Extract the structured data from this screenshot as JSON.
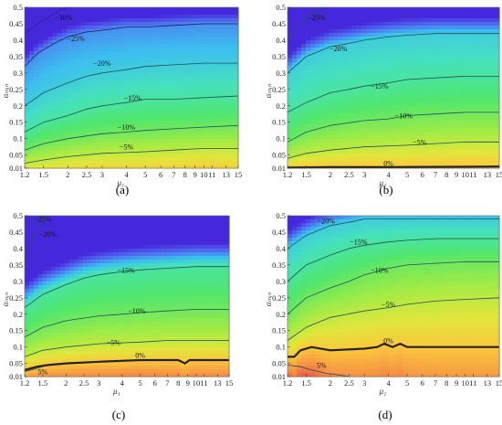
{
  "chart_data": [
    {
      "type": "contour",
      "panel_label": "(a)",
      "xlabel": "μ₁",
      "ylabel": "αₘᵢₙ",
      "xticks": [
        "1.2",
        "1.5",
        "2",
        "2.5",
        "3",
        "4",
        "5",
        "6",
        "7",
        "8",
        "9",
        "10",
        "11",
        "13",
        "15"
      ],
      "yticks": [
        "0.01",
        "0.05",
        "0.1",
        "0.15",
        "0.2",
        "0.25",
        "0.3",
        "0.35",
        "0.4",
        "0.45",
        "0.5"
      ],
      "xlim": [
        1.2,
        15
      ],
      "ylim": [
        0.01,
        0.5
      ],
      "contours": [
        {
          "label": "-30%",
          "level": -30,
          "x": [
            1.2,
            1.4,
            1.6,
            1.8,
            2.0
          ],
          "y": [
            0.42,
            0.45,
            0.47,
            0.49,
            0.5
          ]
        },
        {
          "label": "-25%",
          "level": -25,
          "x": [
            1.2,
            1.4,
            1.7,
            2.0,
            2.5,
            3,
            4,
            5,
            7,
            10,
            15
          ],
          "y": [
            0.32,
            0.36,
            0.39,
            0.41,
            0.425,
            0.43,
            0.44,
            0.44,
            0.445,
            0.45,
            0.45
          ]
        },
        {
          "label": "-20%",
          "level": -20,
          "x": [
            1.2,
            1.5,
            2.0,
            2.5,
            3,
            4,
            5,
            7,
            10,
            15
          ],
          "y": [
            0.2,
            0.24,
            0.27,
            0.29,
            0.3,
            0.31,
            0.32,
            0.325,
            0.33,
            0.33
          ]
        },
        {
          "label": "-15%",
          "level": -15,
          "x": [
            1.2,
            1.5,
            2.0,
            2.5,
            3,
            4,
            5,
            7,
            10,
            15
          ],
          "y": [
            0.12,
            0.15,
            0.17,
            0.19,
            0.2,
            0.21,
            0.22,
            0.22,
            0.225,
            0.23
          ]
        },
        {
          "label": "-10%",
          "level": -10,
          "x": [
            1.2,
            1.5,
            2.0,
            3,
            4,
            5,
            7,
            10,
            15
          ],
          "y": [
            0.065,
            0.085,
            0.1,
            0.115,
            0.12,
            0.125,
            0.13,
            0.135,
            0.14
          ]
        },
        {
          "label": "-5%",
          "level": -5,
          "x": [
            1.2,
            1.5,
            2.0,
            3,
            5,
            7,
            10,
            15
          ],
          "y": [
            0.025,
            0.035,
            0.045,
            0.055,
            0.06,
            0.065,
            0.07,
            0.07
          ]
        }
      ]
    },
    {
      "type": "contour",
      "panel_label": "(b)",
      "xlabel": "μ₁",
      "ylabel": "αₘᵢₙ",
      "xticks": [
        "1.2",
        "1.5",
        "2",
        "2.5",
        "3",
        "4",
        "5",
        "6",
        "7",
        "8",
        "9",
        "10",
        "11",
        "13",
        "15"
      ],
      "yticks": [
        "0.01",
        "0.05",
        "0.1",
        "0.15",
        "0.2",
        "0.25",
        "0.3",
        "0.35",
        "0.4",
        "0.45",
        "0.5"
      ],
      "xlim": [
        1.2,
        15
      ],
      "ylim": [
        0.01,
        0.5
      ],
      "contours": [
        {
          "label": "-25%",
          "level": -25,
          "x": [
            1.2,
            1.35,
            1.5,
            1.7,
            1.9
          ],
          "y": [
            0.4,
            0.44,
            0.47,
            0.49,
            0.5
          ]
        },
        {
          "label": "-20%",
          "level": -20,
          "x": [
            1.2,
            1.5,
            2.0,
            2.5,
            3,
            4,
            5,
            7,
            10,
            15
          ],
          "y": [
            0.3,
            0.35,
            0.38,
            0.39,
            0.4,
            0.41,
            0.415,
            0.42,
            0.42,
            0.42
          ]
        },
        {
          "label": "-15%",
          "level": -15,
          "x": [
            1.2,
            1.5,
            2.0,
            2.5,
            3,
            4,
            5,
            7,
            10,
            15
          ],
          "y": [
            0.18,
            0.21,
            0.24,
            0.25,
            0.26,
            0.27,
            0.28,
            0.285,
            0.29,
            0.29
          ]
        },
        {
          "label": "-10%",
          "level": -10,
          "x": [
            1.2,
            1.5,
            2.0,
            3,
            4,
            5,
            7,
            10,
            15
          ],
          "y": [
            0.09,
            0.12,
            0.14,
            0.155,
            0.16,
            0.17,
            0.175,
            0.18,
            0.18
          ]
        },
        {
          "label": "-5%",
          "level": -5,
          "x": [
            1.2,
            1.5,
            2.0,
            3,
            5,
            7,
            10,
            15
          ],
          "y": [
            0.04,
            0.055,
            0.065,
            0.075,
            0.08,
            0.085,
            0.09,
            0.09
          ]
        },
        {
          "label": "0%",
          "level": 0,
          "x": [
            1.2,
            2,
            4,
            7,
            15
          ],
          "y": [
            0.012,
            0.013,
            0.013,
            0.014,
            0.015
          ]
        }
      ]
    },
    {
      "type": "contour",
      "panel_label": "(c)",
      "xlabel": "μ₁",
      "ylabel": "αₘᵢₙ",
      "xticks": [
        "1.2",
        "1.5",
        "2",
        "2.5",
        "3",
        "4",
        "5",
        "6",
        "7",
        "8",
        "9",
        "10",
        "11",
        "13",
        "15"
      ],
      "yticks": [
        "0.01",
        "0.05",
        "0.1",
        "0.15",
        "0.2",
        "0.25",
        "0.3",
        "0.35",
        "0.4",
        "0.45",
        "0.5"
      ],
      "xlim": [
        1.2,
        15
      ],
      "ylim": [
        0.01,
        0.5
      ],
      "contours": [
        {
          "label": "-25%",
          "level": -25,
          "x": [
            1.2,
            1.3,
            1.4,
            1.5
          ],
          "y": [
            0.47,
            0.48,
            0.49,
            0.5
          ]
        },
        {
          "label": "-20%",
          "level": -20,
          "x": [
            1.2,
            1.25,
            1.35,
            1.45,
            1.6
          ],
          "y": [
            0.35,
            0.4,
            0.44,
            0.47,
            0.5
          ]
        },
        {
          "label": "-15%",
          "level": -15,
          "x": [
            1.2,
            1.5,
            2.0,
            2.5,
            3,
            4,
            5,
            7,
            10,
            15
          ],
          "y": [
            0.22,
            0.26,
            0.29,
            0.31,
            0.32,
            0.33,
            0.335,
            0.34,
            0.345,
            0.345
          ]
        },
        {
          "label": "-10%",
          "level": -10,
          "x": [
            1.2,
            1.5,
            2.0,
            3,
            4,
            5,
            7,
            10,
            15
          ],
          "y": [
            0.13,
            0.16,
            0.18,
            0.195,
            0.2,
            0.205,
            0.21,
            0.215,
            0.215
          ]
        },
        {
          "label": "-5%",
          "level": -5,
          "x": [
            1.2,
            1.5,
            2.0,
            3,
            5,
            7,
            10,
            15
          ],
          "y": [
            0.07,
            0.09,
            0.1,
            0.11,
            0.115,
            0.12,
            0.12,
            0.12
          ]
        },
        {
          "label": "0%",
          "level": 0,
          "x": [
            1.2,
            1.4,
            1.6,
            2.0,
            3,
            5,
            8,
            8.7,
            9.2,
            10,
            15
          ],
          "y": [
            0.03,
            0.04,
            0.045,
            0.05,
            0.055,
            0.06,
            0.06,
            0.05,
            0.06,
            0.06,
            0.06
          ]
        },
        {
          "label": "5%",
          "level": 5,
          "x": [
            1.2,
            1.3,
            1.4,
            1.5
          ],
          "y": [
            0.025,
            0.03,
            0.035,
            0.04
          ]
        }
      ]
    },
    {
      "type": "contour",
      "panel_label": "(d)",
      "xlabel": "μ₁",
      "ylabel": "αₘᵢₙ",
      "xticks": [
        "1.2",
        "1.5",
        "2",
        "2.5",
        "3",
        "4",
        "5",
        "6",
        "7",
        "8",
        "9",
        "10",
        "11",
        "13",
        "15"
      ],
      "yticks": [
        "0.01",
        "0.05",
        "0.1",
        "0.15",
        "0.2",
        "0.25",
        "0.3",
        "0.35",
        "0.4",
        "0.45",
        "0.5"
      ],
      "xlim": [
        1.2,
        15
      ],
      "ylim": [
        0.01,
        0.5
      ],
      "contours": [
        {
          "label": "-20%",
          "level": -20,
          "x": [
            1.2,
            1.5,
            2.0,
            2.5,
            3,
            4,
            5,
            7,
            10,
            15
          ],
          "y": [
            0.4,
            0.44,
            0.47,
            0.48,
            0.49,
            0.49,
            0.49,
            0.49,
            0.49,
            0.49
          ]
        },
        {
          "label": "-15%",
          "level": -15,
          "x": [
            1.2,
            1.5,
            2.0,
            2.5,
            3,
            4,
            5,
            7,
            10,
            15
          ],
          "y": [
            0.3,
            0.35,
            0.38,
            0.4,
            0.41,
            0.42,
            0.425,
            0.43,
            0.43,
            0.43
          ]
        },
        {
          "label": "-10%",
          "level": -10,
          "x": [
            1.2,
            1.5,
            2.0,
            2.5,
            3,
            4,
            5,
            7,
            10,
            15
          ],
          "y": [
            0.2,
            0.25,
            0.28,
            0.3,
            0.32,
            0.34,
            0.35,
            0.355,
            0.36,
            0.36
          ]
        },
        {
          "label": "-5%",
          "level": -5,
          "x": [
            1.2,
            1.5,
            2.0,
            3,
            4,
            5,
            7,
            10,
            15
          ],
          "y": [
            0.12,
            0.16,
            0.19,
            0.21,
            0.22,
            0.23,
            0.24,
            0.245,
            0.25
          ]
        },
        {
          "label": "0%",
          "level": 0,
          "x": [
            1.2,
            1.3,
            1.4,
            1.6,
            2.0,
            3,
            3.5,
            3.8,
            4.2,
            4.6,
            5,
            7,
            10,
            15
          ],
          "y": [
            0.07,
            0.07,
            0.09,
            0.1,
            0.09,
            0.095,
            0.1,
            0.11,
            0.1,
            0.11,
            0.1,
            0.1,
            0.1,
            0.1
          ]
        },
        {
          "label": "5%",
          "level": 5,
          "x": [
            1.2,
            1.4,
            1.6,
            1.9,
            2.2,
            2.5
          ],
          "y": [
            0.045,
            0.04,
            0.03,
            0.02,
            0.015,
            0.01
          ]
        }
      ]
    }
  ]
}
